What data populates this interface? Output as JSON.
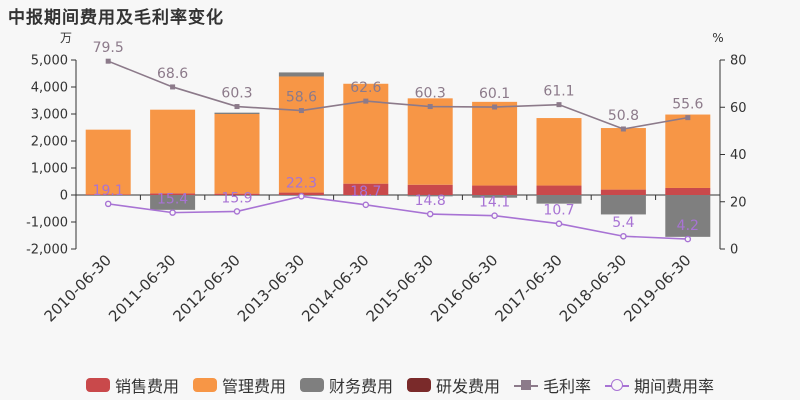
{
  "title": "中报期间费用及毛利率变化",
  "chart_data": {
    "type": "bar",
    "stacked": true,
    "left_unit": "万",
    "right_unit": "%",
    "left_ticks": [
      "5,000",
      "4,000",
      "3,000",
      "2,000",
      "1,000",
      "0",
      "-1,000",
      "-2,000"
    ],
    "left_tick_values": [
      5000,
      4000,
      3000,
      2000,
      1000,
      0,
      -1000,
      -2000
    ],
    "right_ticks": [
      "80",
      "60",
      "40",
      "20",
      "0"
    ],
    "right_tick_values": [
      80,
      60,
      40,
      20,
      0
    ],
    "ylim": [
      -2000,
      5000
    ],
    "y2lim": [
      0,
      80
    ],
    "categories": [
      "2010-06-30",
      "2011-06-30",
      "2012-06-30",
      "2013-06-30",
      "2014-06-30",
      "2015-06-30",
      "2016-06-30",
      "2017-06-30",
      "2018-06-30",
      "2019-06-30"
    ],
    "series": [
      {
        "name": "销售费用",
        "kind": "bar",
        "color": "#c9494b",
        "values": [
          20,
          60,
          50,
          90,
          420,
          380,
          350,
          350,
          200,
          260
        ]
      },
      {
        "name": "管理费用",
        "kind": "bar",
        "color": "#f79646",
        "values": [
          2400,
          3100,
          2950,
          4300,
          3700,
          3200,
          3100,
          2500,
          2280,
          2720
        ]
      },
      {
        "name": "财务费用",
        "kind": "bar",
        "color": "#7f7f7f",
        "values": [
          -30,
          -550,
          50,
          150,
          0,
          -50,
          -100,
          -320,
          -720,
          -1550
        ]
      },
      {
        "name": "研发费用",
        "kind": "bar",
        "color": "#7a2a2a",
        "values": [
          0,
          0,
          0,
          0,
          0,
          0,
          0,
          0,
          0,
          0
        ]
      },
      {
        "name": "毛利率",
        "kind": "line",
        "axis": "right",
        "color": "#8c7a8a",
        "marker": "square",
        "values": [
          79.5,
          68.6,
          60.3,
          58.6,
          62.6,
          60.3,
          60.1,
          61.1,
          50.8,
          55.6
        ],
        "labels": [
          "79.5",
          "68.6",
          "60.3",
          "58.6",
          "62.6",
          "60.3",
          "60.1",
          "61.1",
          "50.8",
          "55.6"
        ]
      },
      {
        "name": "期间费用率",
        "kind": "line",
        "axis": "right",
        "color": "#a873d4",
        "marker": "circle",
        "values": [
          19.1,
          15.4,
          15.9,
          22.3,
          18.7,
          14.8,
          14.1,
          10.7,
          5.4,
          4.2
        ],
        "labels": [
          "19.1",
          "15.4",
          "15.9",
          "22.3",
          "18.7",
          "14.8",
          "14.1",
          "10.7",
          "5.4",
          "4.2"
        ]
      }
    ],
    "legend_position": "bottom"
  }
}
